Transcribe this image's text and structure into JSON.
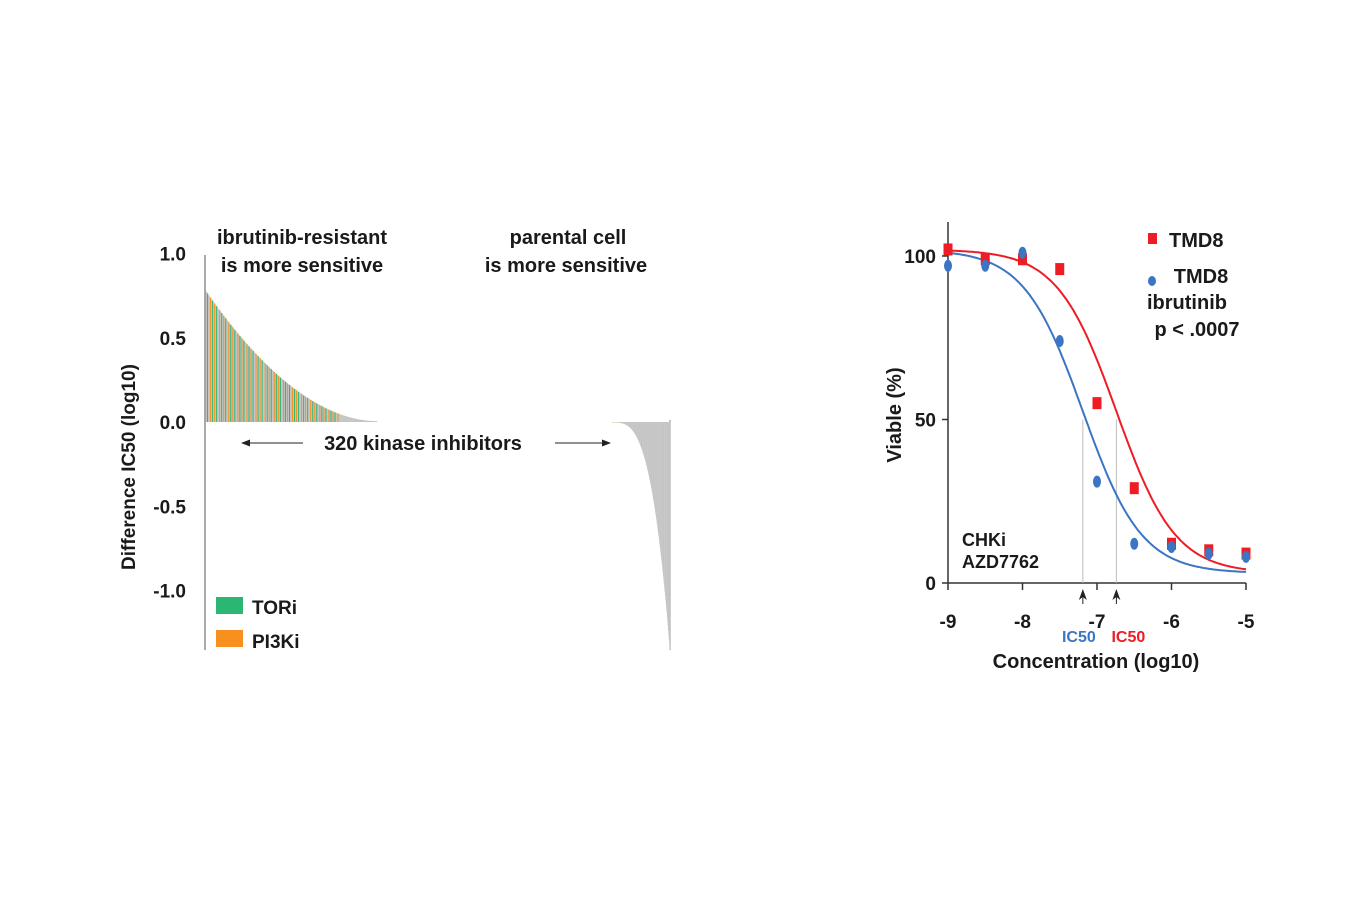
{
  "chart_data": [
    {
      "type": "bar",
      "ylabel": "Difference IC50 (log10)",
      "ylim": [
        -1.35,
        1.0
      ],
      "yticks": [
        1.0,
        0.5,
        0.0,
        -0.5,
        -1.0
      ],
      "ytick_labels": [
        "1.0",
        "0.5",
        "0.0",
        "-0.5",
        "-1.0"
      ],
      "annotations": {
        "left_header": [
          "ibrutinib-resistant",
          "is more sensitive"
        ],
        "right_header": [
          "parental cell",
          "is more sensitive"
        ],
        "middle": "320 kinase inhibitors"
      },
      "legend": {
        "placement": "bottom-left",
        "entries": [
          {
            "label": "TORi",
            "color": "#2bb673"
          },
          {
            "label": "PI3Ki",
            "color": "#f7901e"
          }
        ]
      },
      "colors": {
        "other": "#c4c4c4",
        "TORi": "#2bb673",
        "PI3Ki": "#f7901e"
      },
      "series": [
        {
          "class": "positive",
          "count": 170,
          "max": 0.78,
          "min": 0.005
        },
        {
          "class": "negative",
          "count": 150,
          "max": -0.003,
          "min": -1.35
        }
      ]
    },
    {
      "type": "scatter",
      "xlabel": "Concentration (log10)",
      "ylabel": "Viable (%)",
      "xlim": [
        -9,
        -5
      ],
      "ylim": [
        0,
        110
      ],
      "xticks": [
        -9,
        -8,
        -7,
        -6,
        -5
      ],
      "xtick_labels": [
        "-9",
        "-8",
        "-7",
        "-6",
        "-5"
      ],
      "yticks": [
        0,
        50,
        100
      ],
      "ytick_labels": [
        "0",
        "50",
        "100"
      ],
      "inset_label": [
        "CHKi",
        "AZD7762"
      ],
      "legend": {
        "placement": "top-right",
        "lines": [
          "TMD8",
          "TMD8",
          "ibrutinib",
          "p < .0007"
        ]
      },
      "ic50_markers": [
        {
          "label": "IC50",
          "x": -7.19,
          "color": "#3a76c4"
        },
        {
          "label": "IC50",
          "x": -6.74,
          "color": "#ee1c25"
        }
      ],
      "series": [
        {
          "name": "TMD8",
          "color": "#ee1c25",
          "marker": "square",
          "x": [
            -9,
            -8.5,
            -8,
            -7.5,
            -7,
            -6.5,
            -6,
            -5.5,
            -5
          ],
          "y": [
            102,
            99,
            99,
            96,
            55,
            29,
            12,
            10,
            9
          ],
          "fit_ic50": -6.74
        },
        {
          "name": "TMD8 ibrutinib",
          "color": "#3a76c4",
          "marker": "ellipse",
          "x": [
            -9,
            -8.5,
            -8,
            -7.5,
            -7,
            -6.5,
            -6,
            -5.5,
            -5
          ],
          "y": [
            97,
            97,
            101,
            74,
            31,
            12,
            11,
            9,
            8
          ],
          "fit_ic50": -7.19
        }
      ]
    }
  ]
}
